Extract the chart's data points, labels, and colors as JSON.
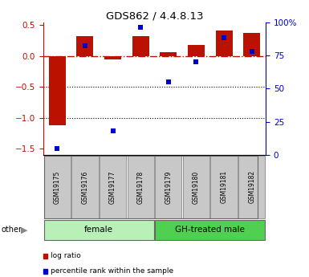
{
  "title": "GDS862 / 4.4.8.13",
  "samples": [
    "GSM19175",
    "GSM19176",
    "GSM19177",
    "GSM19178",
    "GSM19179",
    "GSM19180",
    "GSM19181",
    "GSM19182"
  ],
  "log_ratio": [
    -1.12,
    0.33,
    -0.05,
    0.33,
    0.07,
    0.18,
    0.42,
    0.37
  ],
  "percentile_rank": [
    5,
    82,
    18,
    96,
    55,
    70,
    88,
    78
  ],
  "groups": [
    {
      "label": "female",
      "start": 0,
      "end": 4,
      "color": "#b8f0b8"
    },
    {
      "label": "GH-treated male",
      "start": 4,
      "end": 8,
      "color": "#50d050"
    }
  ],
  "bar_color": "#bb1100",
  "dot_color": "#0000cc",
  "sample_box_color": "#c8c8c8",
  "ylim_left": [
    -1.6,
    0.55
  ],
  "ylim_right": [
    0,
    100
  ],
  "yticks_left": [
    -1.5,
    -1.0,
    -0.5,
    0.0,
    0.5
  ],
  "yticks_right": [
    0,
    25,
    50,
    75,
    100
  ],
  "hline_y": 0.0,
  "dotted_lines": [
    -0.5,
    -1.0
  ],
  "legend_items": [
    {
      "label": "log ratio",
      "color": "#bb1100"
    },
    {
      "label": "percentile rank within the sample",
      "color": "#0000cc"
    }
  ],
  "other_label": "other",
  "background_color": "#ffffff"
}
